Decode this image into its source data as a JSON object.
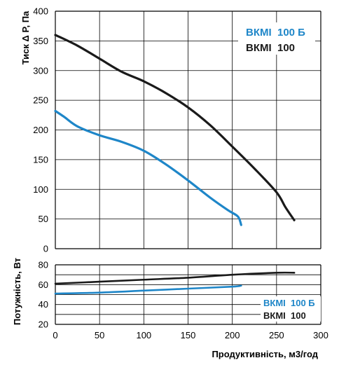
{
  "colors": {
    "blue": "#1e86c8",
    "black": "#1a1a1a",
    "grid": "#000000"
  },
  "x_axis": {
    "label": "Продуктивність, м3/год",
    "ticks": [
      "0",
      "50",
      "100",
      "150",
      "200",
      "250",
      "300"
    ]
  },
  "chart_data": [
    {
      "type": "line",
      "ylabel": "Тиск Δ P, Па",
      "xlim": [
        0,
        300
      ],
      "ylim": [
        0,
        400
      ],
      "grid": true,
      "x_ticks": [
        0,
        50,
        100,
        150,
        200,
        250,
        300
      ],
      "y_ticks": [
        0,
        50,
        100,
        150,
        200,
        250,
        300,
        350,
        400
      ],
      "y_tick_labels": [
        "0",
        "50",
        "100",
        "150",
        "200",
        "250",
        "300",
        "350",
        "400"
      ],
      "legend_position": "top-right",
      "legend": [
        {
          "label": "ВКМІ  100 Б",
          "color": "#1e86c8"
        },
        {
          "label": "ВКМІ  100",
          "color": "#1a1a1a"
        }
      ],
      "series": [
        {
          "name": "ВКМІ  100",
          "color": "#1a1a1a",
          "x": [
            0,
            25,
            50,
            75,
            100,
            125,
            150,
            175,
            200,
            225,
            250,
            260,
            270
          ],
          "y": [
            360,
            342,
            320,
            298,
            282,
            262,
            238,
            208,
            172,
            135,
            95,
            70,
            48
          ]
        },
        {
          "name": "ВКМІ  100 Б",
          "color": "#1e86c8",
          "x": [
            0,
            10,
            25,
            50,
            75,
            100,
            125,
            150,
            175,
            195,
            205,
            208,
            210
          ],
          "y": [
            232,
            222,
            206,
            191,
            180,
            165,
            142,
            115,
            86,
            65,
            56,
            50,
            40
          ]
        }
      ]
    },
    {
      "type": "line",
      "ylabel": "Потужність, Вт",
      "xlim": [
        0,
        300
      ],
      "ylim": [
        20,
        80
      ],
      "grid": true,
      "x_ticks": [
        0,
        50,
        100,
        150,
        200,
        250,
        300
      ],
      "y_ticks": [
        20,
        30,
        40,
        50,
        60,
        70,
        80
      ],
      "y_tick_labels": [
        "20",
        "40",
        "60",
        "80"
      ],
      "legend_position": "bottom-right",
      "legend": [
        {
          "label": "ВКМІ  100 Б",
          "color": "#1e86c8"
        },
        {
          "label": "ВКМІ  100",
          "color": "#1a1a1a"
        }
      ],
      "series": [
        {
          "name": "ВКМІ  100",
          "color": "#1a1a1a",
          "x": [
            0,
            50,
            100,
            150,
            200,
            250,
            270
          ],
          "y": [
            61,
            63,
            65,
            67,
            70,
            72,
            72
          ]
        },
        {
          "name": "ВКМІ  100 Б",
          "color": "#1e86c8",
          "x": [
            0,
            50,
            100,
            150,
            200,
            210
          ],
          "y": [
            51,
            52,
            54,
            56,
            58,
            59
          ]
        }
      ]
    }
  ]
}
